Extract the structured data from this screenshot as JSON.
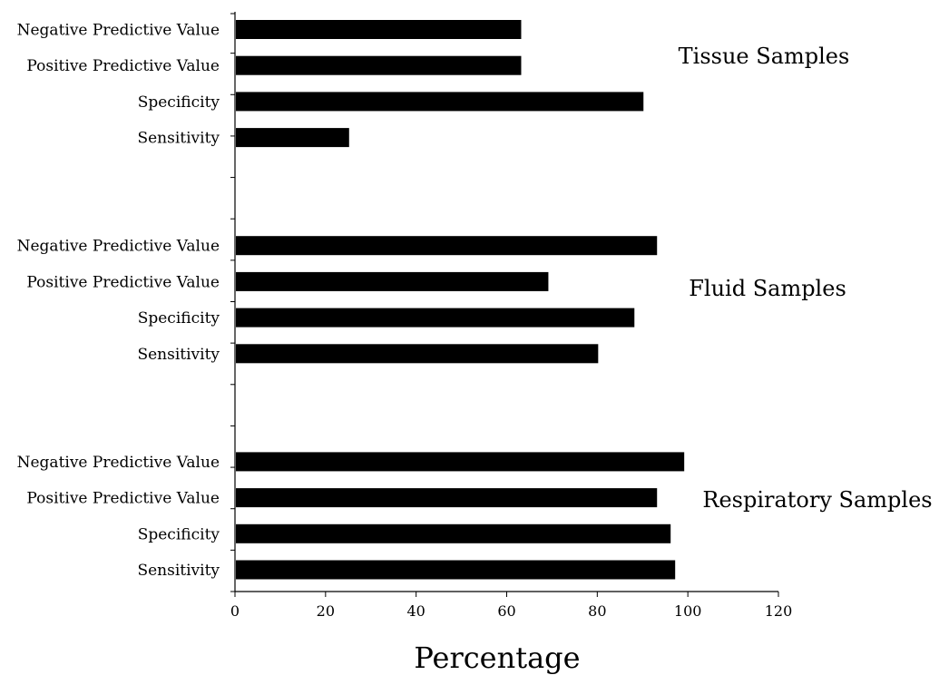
{
  "chart_data": {
    "type": "bar",
    "orientation": "horizontal",
    "xlabel": "Percentage",
    "ylabel": "",
    "xlim": [
      0,
      120
    ],
    "xticks": [
      0,
      20,
      40,
      60,
      80,
      100,
      120
    ],
    "grid": false,
    "bar_color": "#000000",
    "groups": [
      {
        "name": "Tissue Samples",
        "bars": [
          {
            "category": "Negative Predictive Value",
            "value": 63
          },
          {
            "category": "Positive Predictive Value",
            "value": 63
          },
          {
            "category": "Specificity",
            "value": 90
          },
          {
            "category": "Sensitivity",
            "value": 25
          }
        ]
      },
      {
        "name": "Fluid Samples",
        "bars": [
          {
            "category": "Negative Predictive Value",
            "value": 93
          },
          {
            "category": "Positive Predictive Value",
            "value": 69
          },
          {
            "category": "Specificity",
            "value": 88
          },
          {
            "category": "Sensitivity",
            "value": 80
          }
        ]
      },
      {
        "name": "Respiratory Samples",
        "bars": [
          {
            "category": "Negative Predictive Value",
            "value": 99
          },
          {
            "category": "Positive Predictive Value",
            "value": 93
          },
          {
            "category": "Specificity",
            "value": 96
          },
          {
            "category": "Sensitivity",
            "value": 97
          }
        ]
      }
    ]
  }
}
